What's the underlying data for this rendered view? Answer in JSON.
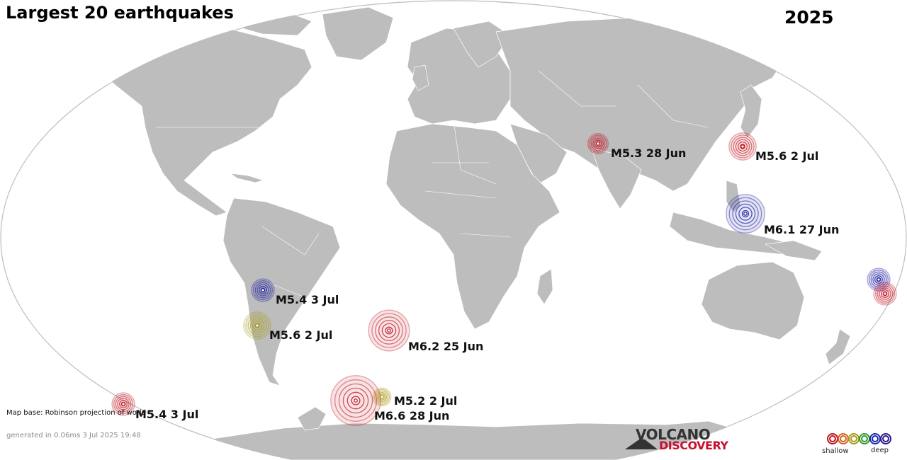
{
  "map": {
    "title": "Largest 20 earthquakes",
    "year": "2025",
    "credit": "Map base: Robinson projection of world",
    "generated": "generated in 0.06ms  3 Jul 2025 19:48",
    "land_color": "#bdbdbd",
    "ocean_color": "#ffffff"
  },
  "depth_colors": {
    "shallow": "#c0141e",
    "deep": "#1a1aa0",
    "intermediate": "#a89a18"
  },
  "earthquakes": [
    {
      "id": "q1",
      "label": "M5.3 28 Jun",
      "magnitude": 5.3,
      "date": "28 Jun",
      "depth": "shallow"
    },
    {
      "id": "q2",
      "label": "M5.6  2 Jul",
      "magnitude": 5.6,
      "date": "2 Jul",
      "depth": "shallow"
    },
    {
      "id": "q3",
      "label": "M6.1 27 Jun",
      "magnitude": 6.1,
      "date": "27 Jun",
      "depth": "deep"
    },
    {
      "id": "q4",
      "label": "M5.4  3 Jul",
      "magnitude": 5.4,
      "date": "3 Jul",
      "depth": "deep"
    },
    {
      "id": "q5",
      "label": "M5.6  2 Jul",
      "magnitude": 5.6,
      "date": "2 Jul",
      "depth": "intermediate"
    },
    {
      "id": "q6",
      "label": "M6.2 25 Jun",
      "magnitude": 6.2,
      "date": "25 Jun",
      "depth": "shallow"
    },
    {
      "id": "q7",
      "label": "M5.4  3 Jul",
      "magnitude": 5.4,
      "date": "3 Jul",
      "depth": "shallow"
    },
    {
      "id": "q8",
      "label": "M5.2  2 Jul",
      "magnitude": 5.2,
      "date": "2 Jul",
      "depth": "intermediate"
    },
    {
      "id": "q9",
      "label": "M6.6 28 Jun",
      "magnitude": 6.6,
      "date": "28 Jun",
      "depth": "shallow"
    },
    {
      "id": "q10",
      "label": "",
      "magnitude": null,
      "date": "",
      "depth": "deep"
    },
    {
      "id": "q11",
      "label": "",
      "magnitude": null,
      "date": "",
      "depth": "shallow"
    }
  ],
  "logo": {
    "line1": "VOLCANO",
    "line2": "DISCOVERY"
  },
  "legend": {
    "shallow_label": "shallow",
    "deep_label": "deep",
    "colors": [
      "#c0141e",
      "#d2641e",
      "#a89a18",
      "#2e9a2e",
      "#1a2ab0",
      "#2a1a90"
    ]
  }
}
